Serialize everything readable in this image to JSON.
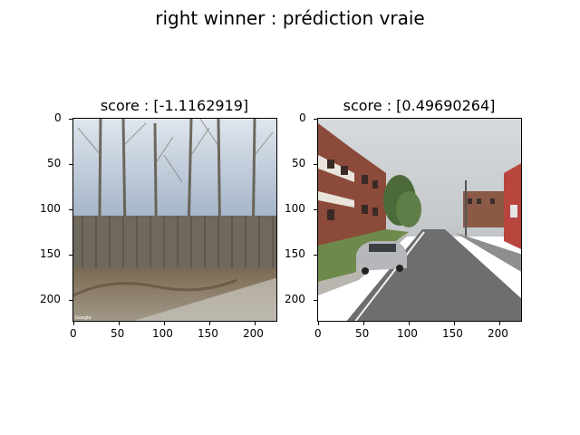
{
  "figure": {
    "suptitle": "right winner : prédiction vraie"
  },
  "panels": [
    {
      "title": "score : [-1.1162919]",
      "image_description_icon": "fence-trees-photo",
      "x_ticks": [
        "0",
        "50",
        "100",
        "150",
        "200"
      ],
      "y_ticks": [
        "0",
        "50",
        "100",
        "150",
        "200"
      ],
      "watermark": "Google"
    },
    {
      "title": "score : [0.49690264]",
      "image_description_icon": "street-buildings-photo",
      "x_ticks": [
        "0",
        "50",
        "100",
        "150",
        "200"
      ],
      "y_ticks": [
        "0",
        "50",
        "100",
        "150",
        "200"
      ],
      "watermark": "Google"
    }
  ],
  "colors": {
    "sky_left": "#b8c4d2",
    "sky_right": "#cfd3d6",
    "fence": "#6f685c",
    "ground": "#8a7a62",
    "brick": "#8b4a3a",
    "road": "#6e6e70",
    "grass": "#6e8a4a"
  }
}
